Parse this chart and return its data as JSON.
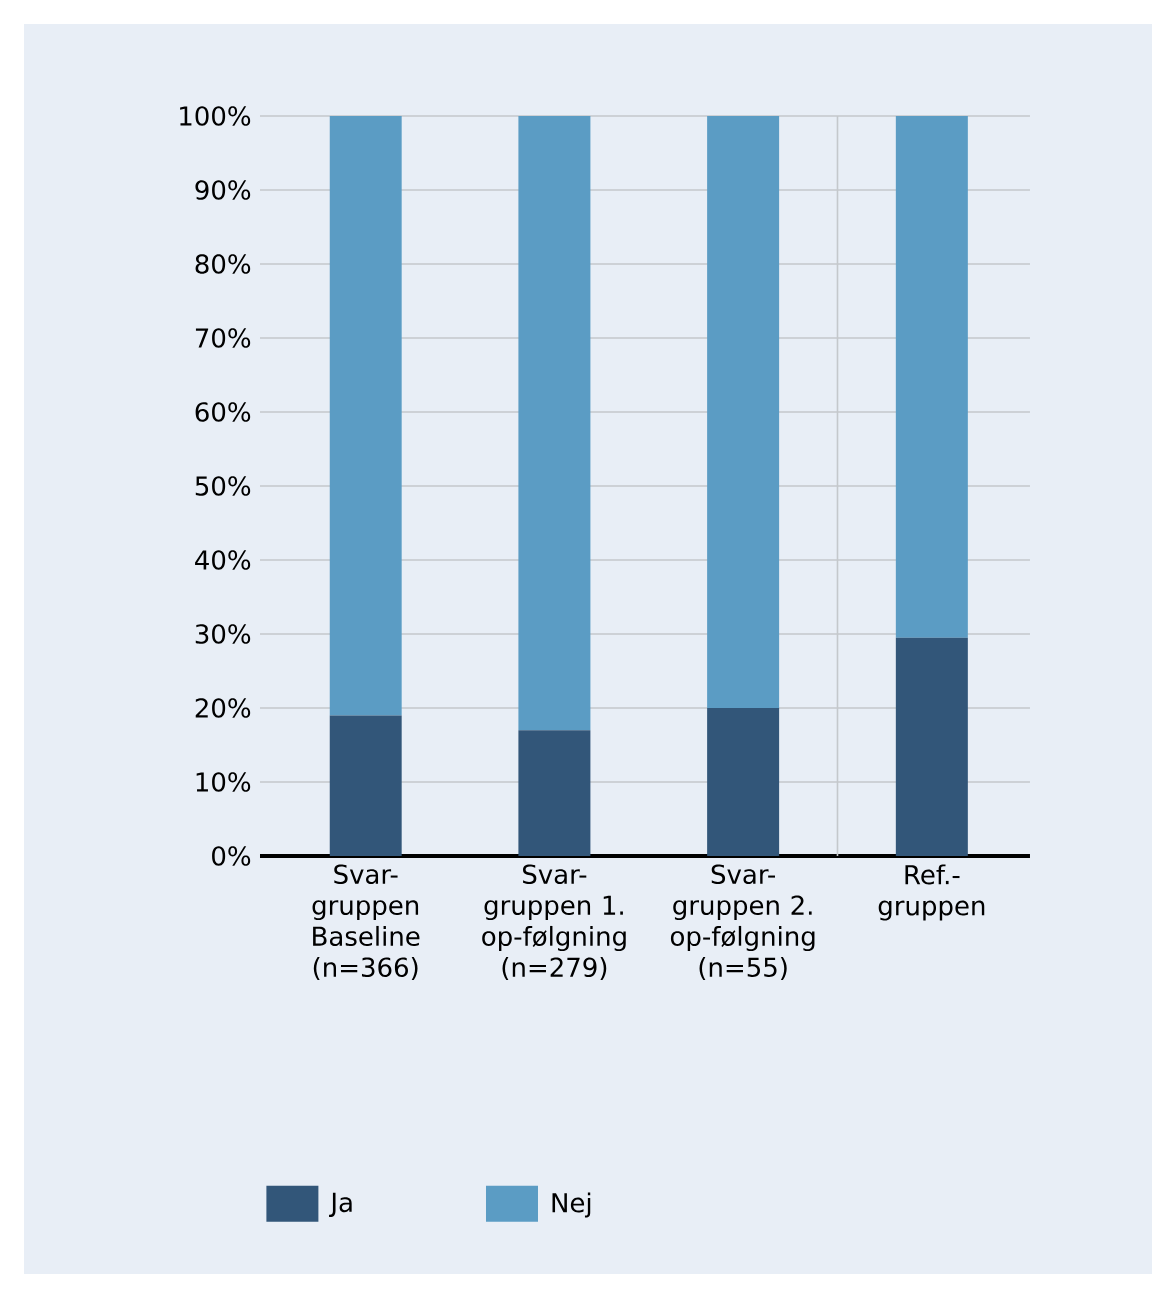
{
  "chart_data": {
    "type": "bar",
    "stacked": true,
    "categories": [
      "Svar-gruppen Baseline (n=366)",
      "Svar-gruppen 1. op-følgning (n=279)",
      "Svar-gruppen 2. op-følgning (n=55)",
      "Ref.-gruppen"
    ],
    "series": [
      {
        "name": "Ja",
        "color": "#325679",
        "values": [
          19,
          17,
          20,
          29.5
        ]
      },
      {
        "name": "Nej",
        "color": "#5b9cc4",
        "values": [
          81,
          83,
          80,
          70.5
        ]
      }
    ],
    "ylim": [
      0,
      100
    ],
    "yticks": [
      {
        "value": 0,
        "label": "0%"
      },
      {
        "value": 10,
        "label": "10%"
      },
      {
        "value": 20,
        "label": "20%"
      },
      {
        "value": 30,
        "label": "30%"
      },
      {
        "value": 40,
        "label": "40%"
      },
      {
        "value": 50,
        "label": "50%"
      },
      {
        "value": 60,
        "label": "60%"
      },
      {
        "value": 70,
        "label": "70%"
      },
      {
        "value": 80,
        "label": "80%"
      },
      {
        "value": 90,
        "label": "90%"
      },
      {
        "value": 100,
        "label": "100%"
      }
    ],
    "grid": "y",
    "legend": "bottom"
  }
}
